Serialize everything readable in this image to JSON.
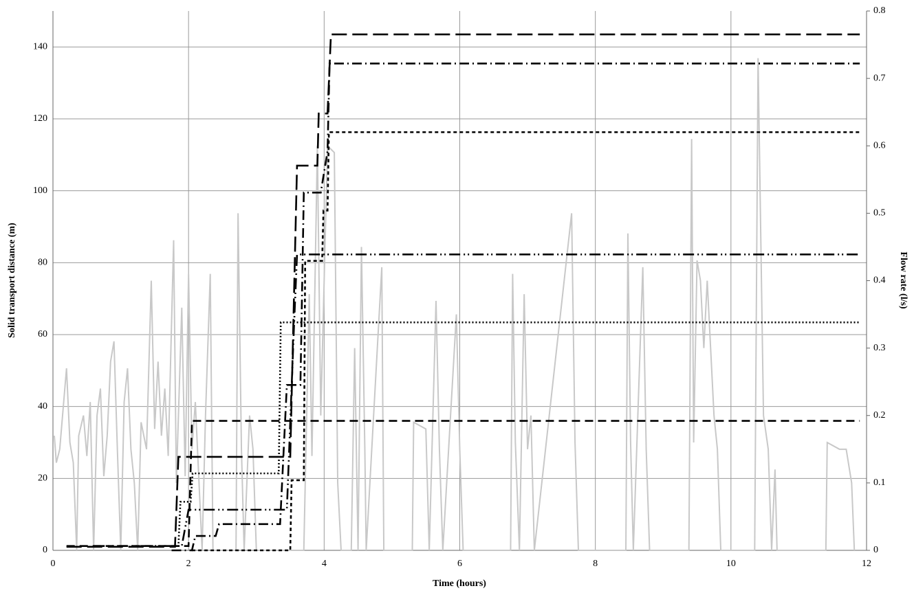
{
  "chart_data": {
    "type": "line",
    "x_label": "Time (hours)",
    "y_label": "Solid transport distance (m)",
    "y2_label": "Flow rate (l/s)",
    "xlim": [
      0,
      12
    ],
    "xticks": [
      0,
      2,
      4,
      6,
      8,
      10,
      12
    ],
    "ylim": [
      0,
      150
    ],
    "yticks": [
      0,
      20,
      40,
      60,
      80,
      100,
      120,
      140
    ],
    "y2lim": [
      0,
      0.8
    ],
    "y2ticks": [
      0,
      0.1,
      0.2,
      0.3,
      0.4,
      0.5,
      0.6,
      0.7,
      0.8
    ],
    "grid": true,
    "series": [
      {
        "axis": "y2",
        "color": "#c8c8c8",
        "dash": "solid",
        "x": [
          0.02,
          0.05,
          0.1,
          0.15,
          0.2,
          0.25,
          0.3,
          0.35,
          0.38,
          0.45,
          0.5,
          0.55,
          0.6,
          0.65,
          0.7,
          0.75,
          0.8,
          0.85,
          0.9,
          0.95,
          1.0,
          1.05,
          1.1,
          1.15,
          1.2,
          1.25,
          1.3,
          1.38,
          1.45,
          1.5,
          1.55,
          1.6,
          1.65,
          1.7,
          1.78,
          1.82,
          1.9,
          1.95,
          2.0,
          2.05,
          2.1,
          2.15,
          2.2,
          2.25,
          2.32,
          2.36,
          2.7,
          2.73,
          2.78,
          2.82,
          2.9,
          2.95,
          3.0,
          3.7,
          3.78,
          3.82,
          3.9,
          3.95,
          4.05,
          4.15,
          4.2,
          4.25,
          4.4,
          4.45,
          4.5,
          4.55,
          4.6,
          4.62,
          4.85,
          4.88,
          5.3,
          5.32,
          5.5,
          5.55,
          5.65,
          5.7,
          5.75,
          5.95,
          6.0,
          6.05,
          6.75,
          6.78,
          6.82,
          6.88,
          6.95,
          7.0,
          7.05,
          7.1,
          7.65,
          7.7,
          7.75,
          8.45,
          8.48,
          8.52,
          8.56,
          8.7,
          8.75,
          8.8,
          9.38,
          9.42,
          9.45,
          9.5,
          9.55,
          9.6,
          9.65,
          9.7,
          9.75,
          9.8,
          9.85,
          10.35,
          10.4,
          10.48,
          10.55,
          10.6,
          10.65,
          10.68,
          11.4,
          11.42,
          11.6,
          11.7,
          11.78,
          11.82
        ],
        "values": [
          0.17,
          0.13,
          0.15,
          0.21,
          0.27,
          0.16,
          0.13,
          0,
          0.17,
          0.2,
          0.14,
          0.22,
          0,
          0.2,
          0.24,
          0.11,
          0.17,
          0.28,
          0.31,
          0.15,
          0,
          0.22,
          0.27,
          0.15,
          0.1,
          0,
          0.19,
          0.15,
          0.4,
          0.18,
          0.28,
          0.17,
          0.24,
          0.14,
          0.46,
          0.1,
          0.36,
          0.11,
          0.41,
          0.15,
          0.22,
          0.11,
          0,
          0.2,
          0.41,
          0,
          0,
          0.5,
          0.15,
          0,
          0.2,
          0.15,
          0,
          0,
          0.38,
          0.14,
          0.6,
          0.2,
          0.6,
          0.59,
          0.1,
          0,
          0,
          0.3,
          0,
          0.45,
          0.15,
          0,
          0.42,
          0,
          0,
          0.19,
          0.18,
          0,
          0.37,
          0.15,
          0,
          0.35,
          0.15,
          0,
          0,
          0.41,
          0.16,
          0,
          0.38,
          0.15,
          0.2,
          0,
          0.5,
          0.16,
          0,
          0,
          0.47,
          0.16,
          0,
          0.42,
          0.15,
          0,
          0,
          0.61,
          0.16,
          0.43,
          0.4,
          0.3,
          0.4,
          0.3,
          0.2,
          0.15,
          0,
          0,
          0.73,
          0.2,
          0.15,
          0,
          0.12,
          0,
          0,
          0.16,
          0.15,
          0.15,
          0.1,
          0
        ]
      },
      {
        "axis": "y",
        "color": "#000000",
        "dash": "12,7",
        "x": [
          0.2,
          1.8,
          2.0,
          2.05,
          11.9
        ],
        "values": [
          1.2,
          1.2,
          1.2,
          36,
          36
        ]
      },
      {
        "axis": "y",
        "color": "#000000",
        "dash": "2,3",
        "x": [
          1.85,
          1.88,
          2.03,
          2.06,
          3.33,
          3.36,
          11.9
        ],
        "values": [
          1,
          13.5,
          13.5,
          21.4,
          21.4,
          63.4,
          63.4
        ]
      },
      {
        "axis": "y",
        "color": "#000000",
        "dash": "16,5,2,4,2,5",
        "x": [
          0.6,
          1.9,
          2.0,
          3.45,
          3.55,
          3.6,
          11.9
        ],
        "values": [
          1.2,
          1.2,
          11.3,
          11.3,
          60,
          82.3,
          82.3
        ]
      },
      {
        "axis": "y",
        "color": "#000000",
        "dash": "5,4",
        "x": [
          2.05,
          3.5,
          3.52,
          3.7,
          3.72,
          3.97,
          3.99,
          4.05,
          4.07,
          11.9
        ],
        "values": [
          0,
          0,
          19.5,
          19.5,
          80.5,
          80.5,
          94.5,
          94.5,
          116.3,
          116.3
        ]
      },
      {
        "axis": "y",
        "color": "#000000",
        "dash": "14,5,2,5",
        "x": [
          1.75,
          2.05,
          2.1,
          2.4,
          2.45,
          3.35,
          3.45,
          3.65,
          3.7,
          3.95,
          4.05,
          4.08,
          11.9
        ],
        "values": [
          0,
          0,
          4,
          4,
          7.3,
          7.3,
          46,
          46,
          99.5,
          99.5,
          111,
          135.4,
          135.4
        ]
      },
      {
        "axis": "y",
        "color": "#000000",
        "dash": "22,8",
        "x": [
          0.2,
          1.8,
          1.85,
          3.5,
          3.6,
          3.9,
          3.92,
          4.05,
          4.1,
          11.9
        ],
        "values": [
          1,
          1,
          26,
          26,
          107,
          107,
          121.5,
          121.5,
          143.5,
          143.5
        ]
      }
    ]
  }
}
